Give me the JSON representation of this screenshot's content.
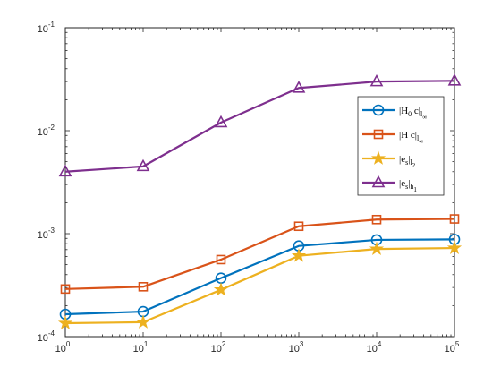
{
  "chart_data": {
    "type": "line",
    "x_scale": "log",
    "y_scale": "log",
    "xlim": [
      1,
      100000
    ],
    "ylim": [
      0.0001,
      0.1
    ],
    "grid": false,
    "legend_position": "right",
    "x": [
      1,
      10,
      100,
      1000,
      10000,
      100000
    ],
    "x_tick_labels": [
      {
        "base": "10",
        "exp": "0"
      },
      {
        "base": "10",
        "exp": "1"
      },
      {
        "base": "10",
        "exp": "2"
      },
      {
        "base": "10",
        "exp": "3"
      },
      {
        "base": "10",
        "exp": "4"
      },
      {
        "base": "10",
        "exp": "5"
      }
    ],
    "y_tick_values": [
      0.0001,
      0.001,
      0.01,
      0.1
    ],
    "y_tick_labels": [
      {
        "base": "10",
        "exp": "-4"
      },
      {
        "base": "10",
        "exp": "-3"
      },
      {
        "base": "10",
        "exp": "-2"
      },
      {
        "base": "10",
        "exp": "-1"
      }
    ],
    "series": [
      {
        "legend": {
          "pre": "|H",
          "sub1": "0",
          "mid": " c|",
          "sub2": "l",
          "sub3": "∞"
        },
        "color": "#0072BD",
        "marker": "circle",
        "values": [
          0.000165,
          0.000175,
          0.00037,
          0.00076,
          0.00087,
          0.00088
        ]
      },
      {
        "legend": {
          "pre": "|H c|",
          "sub1": "l",
          "mid": "",
          "sub2": "",
          "sub3": "∞"
        },
        "color": "#D95319",
        "marker": "square",
        "values": [
          0.00029,
          0.000305,
          0.00056,
          0.00118,
          0.00137,
          0.00139
        ]
      },
      {
        "legend": {
          "pre": "|e",
          "sub1": "s",
          "mid": "|",
          "sub2": "l",
          "sub3": "2"
        },
        "color": "#EDB120",
        "marker": "star",
        "values": [
          0.000135,
          0.000138,
          0.000285,
          0.00061,
          0.00071,
          0.000725
        ]
      },
      {
        "legend": {
          "pre": "|e",
          "sub1": "s",
          "mid": "|",
          "sub2": "h",
          "sub3": "1"
        },
        "color": "#7E2F8E",
        "marker": "triangle",
        "values": [
          0.004,
          0.0045,
          0.012,
          0.026,
          0.03,
          0.0305
        ]
      }
    ]
  }
}
